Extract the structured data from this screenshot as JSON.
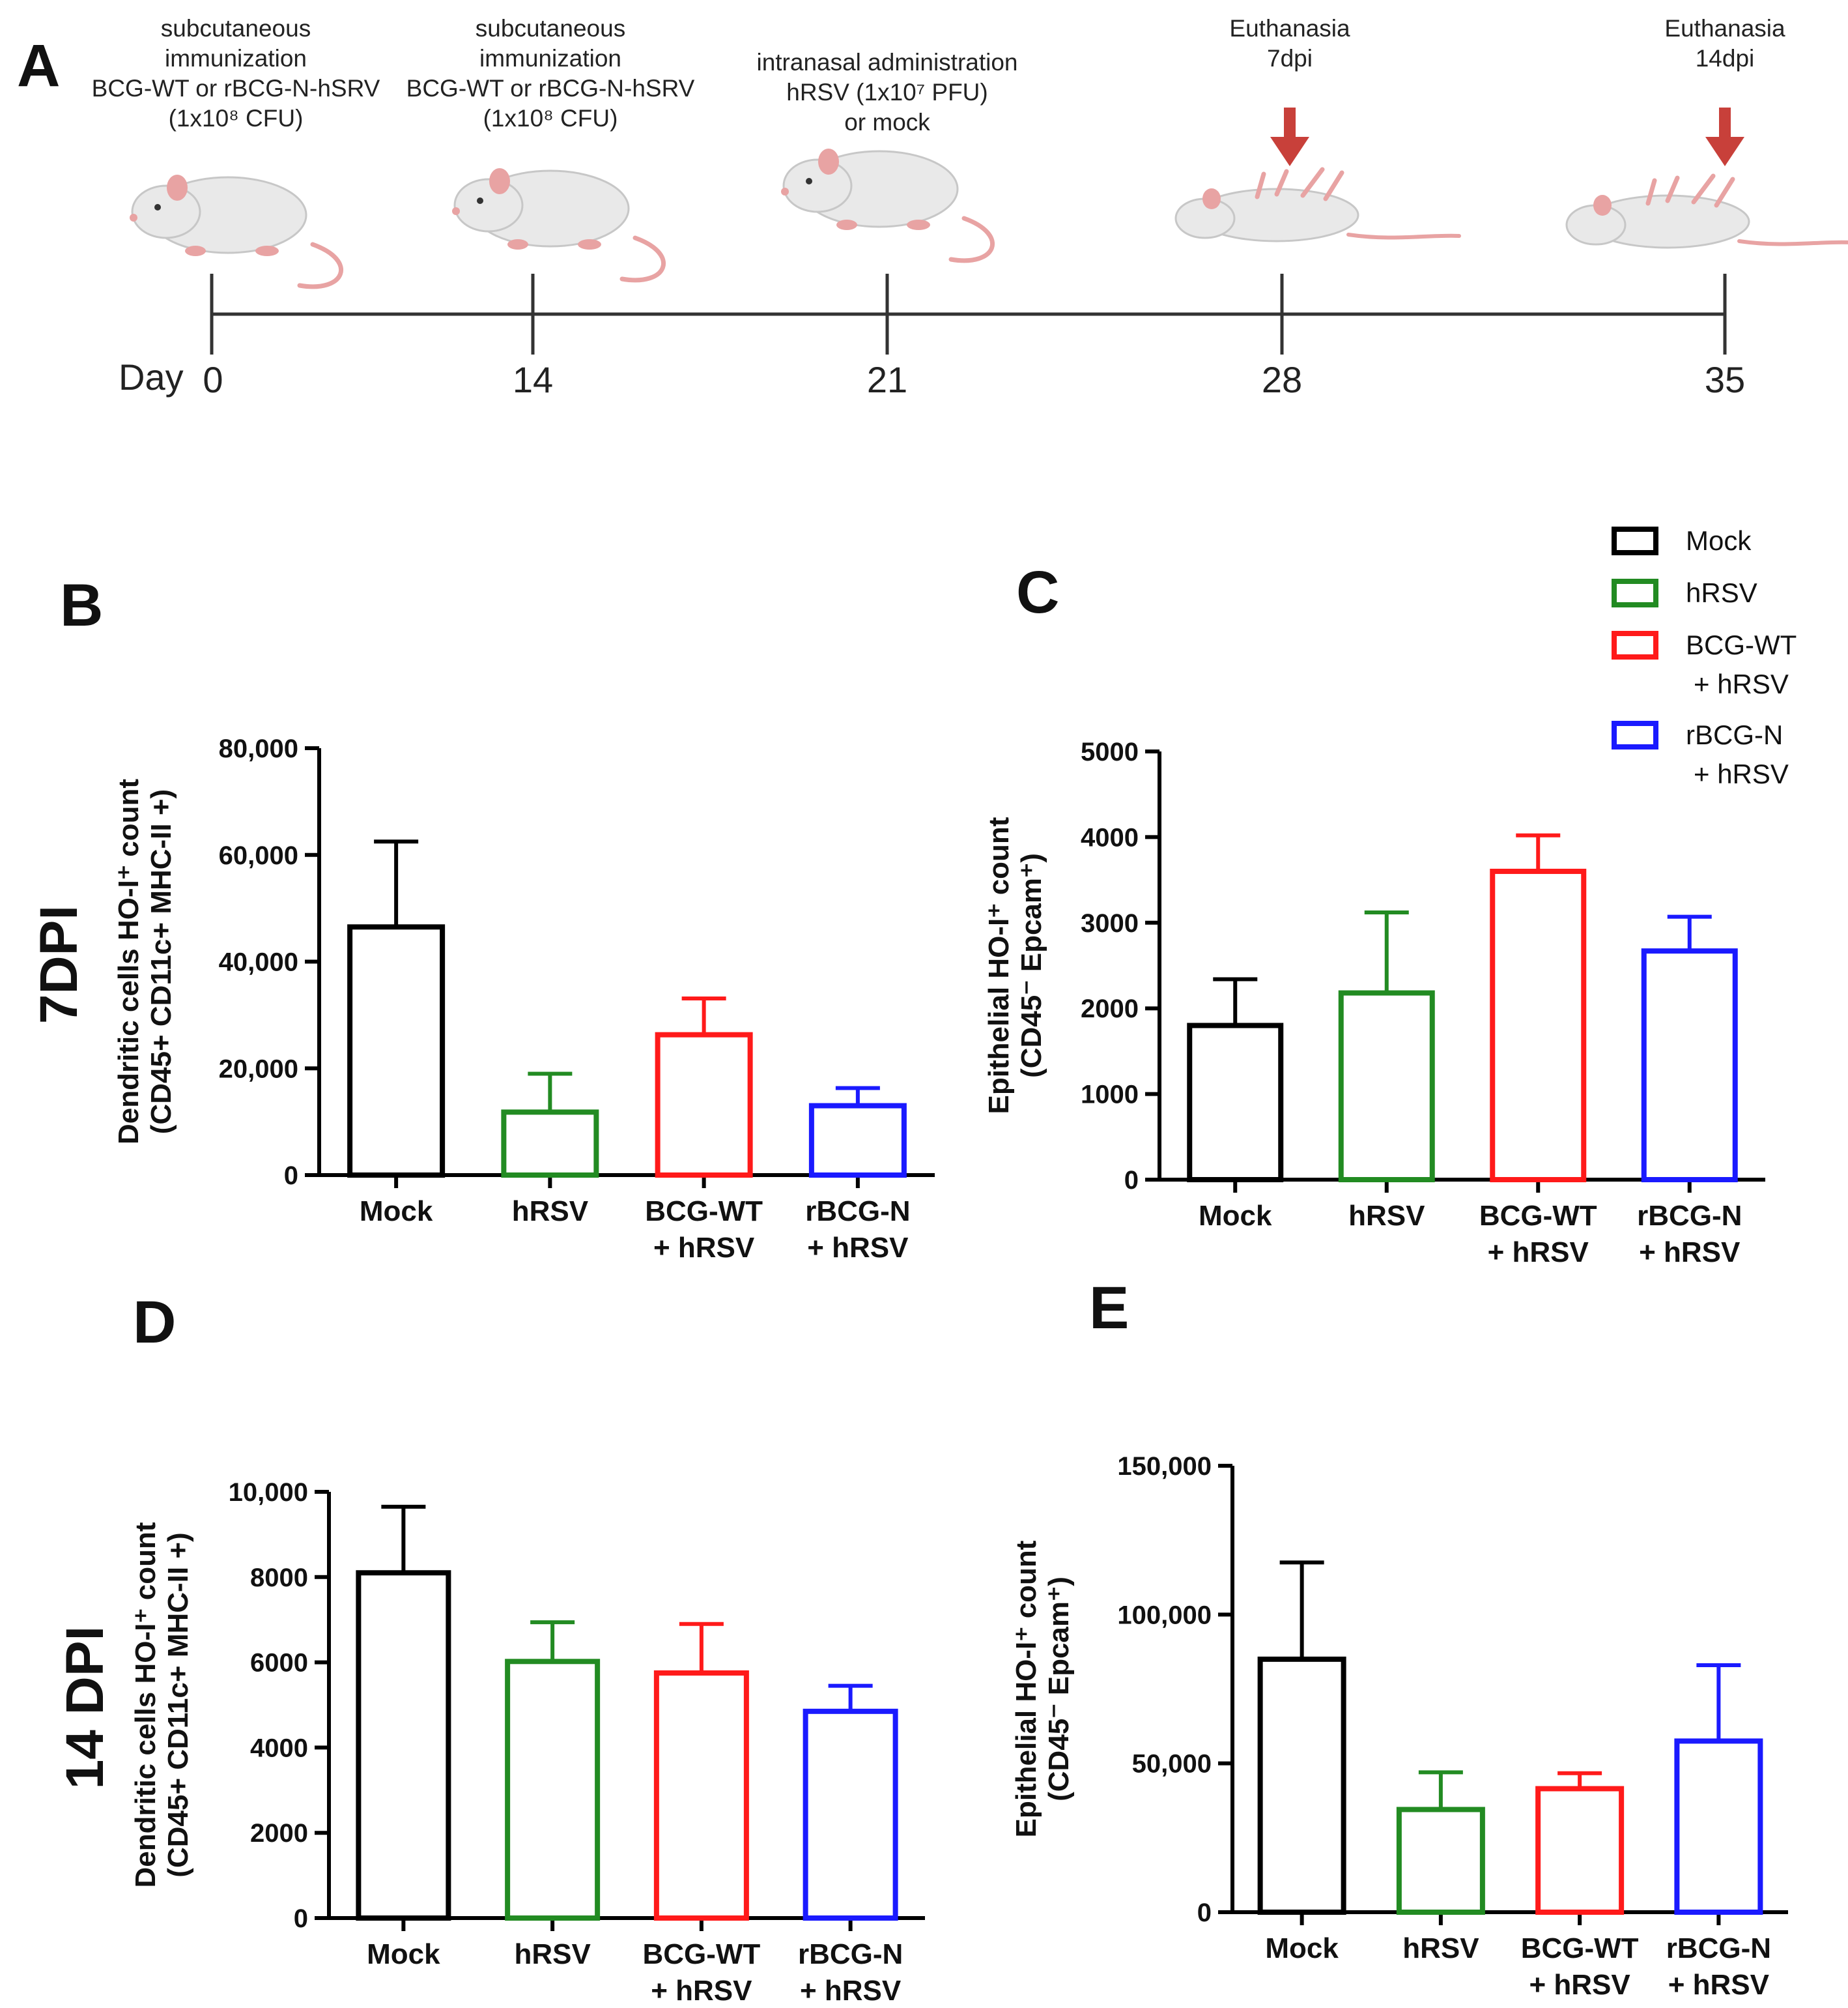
{
  "figure": {
    "panel_letters": [
      "A",
      "B",
      "C",
      "D",
      "E"
    ],
    "row_labels": [
      "7DPI",
      "14 DPI"
    ],
    "timeline": {
      "day_label": "Day",
      "days": [
        "0",
        "14",
        "21",
        "28",
        "35"
      ],
      "events": [
        {
          "lines": [
            "subcutaneous",
            "immunization",
            "BCG-WT or rBCG-N-hSRV",
            "(1x10⁸ CFU)"
          ]
        },
        {
          "lines": [
            "subcutaneous",
            "immunization",
            "BCG-WT or rBCG-N-hSRV",
            "(1x10⁸ CFU)"
          ]
        },
        {
          "lines": [
            "intranasal administration",
            "hRSV  (1x10⁷ PFU)",
            "or mock"
          ]
        },
        {
          "lines": [
            "Euthanasia",
            "7dpi"
          ],
          "arrow": true
        },
        {
          "lines": [
            "Euthanasia",
            "14dpi"
          ],
          "arrow": true
        }
      ],
      "colors": {
        "arrow": "#c8403a",
        "line": "#333333",
        "mouse_body": "#e9e9e9",
        "mouse_pink": "#e8a3a3"
      }
    },
    "legend": [
      {
        "lines": [
          "Mock"
        ],
        "color": "#000000"
      },
      {
        "lines": [
          "hRSV"
        ],
        "color": "#228b22"
      },
      {
        "lines": [
          "BCG-WT",
          "+ hRSV"
        ],
        "color": "#ff1a1a"
      },
      {
        "lines": [
          "rBCG-N",
          "+ hRSV"
        ],
        "color": "#1a1aff"
      }
    ]
  },
  "chart_data": [
    {
      "panel": "B",
      "type": "bar",
      "categories": [
        [
          "Mock"
        ],
        [
          "hRSV"
        ],
        [
          "BCG-WT",
          "+ hRSV"
        ],
        [
          "rBCG-N",
          "+ hRSV"
        ]
      ],
      "values": [
        46500,
        11800,
        26300,
        13000
      ],
      "errors": [
        16000,
        7200,
        6800,
        3300
      ],
      "colors": [
        "#000000",
        "#228b22",
        "#ff1a1a",
        "#1a1aff"
      ],
      "ylabel": [
        "Dendritic cells HO-I⁺ count",
        "(CD45+ CD11c+ MHC-II +)"
      ],
      "ylim": [
        0,
        80000
      ],
      "yticks": [
        "0",
        "20,000",
        "40,000",
        "60,000",
        "80,000"
      ]
    },
    {
      "panel": "C",
      "type": "bar",
      "categories": [
        [
          "Mock"
        ],
        [
          "hRSV"
        ],
        [
          "BCG-WT",
          "+ hRSV"
        ],
        [
          "rBCG-N",
          "+ hRSV"
        ]
      ],
      "values": [
        1800,
        2180,
        3600,
        2670
      ],
      "errors": [
        540,
        940,
        420,
        400
      ],
      "colors": [
        "#000000",
        "#228b22",
        "#ff1a1a",
        "#1a1aff"
      ],
      "ylabel": [
        "Epithelial HO-I⁺ count",
        "(CD45⁻ Epcam⁺)"
      ],
      "ylim": [
        0,
        5000
      ],
      "yticks": [
        "0",
        "1000",
        "2000",
        "3000",
        "4000",
        "5000"
      ]
    },
    {
      "panel": "D",
      "type": "bar",
      "categories": [
        [
          "Mock"
        ],
        [
          "hRSV"
        ],
        [
          "BCG-WT",
          "+ hRSV"
        ],
        [
          "rBCG-N",
          "+ hRSV"
        ]
      ],
      "values": [
        8100,
        6020,
        5750,
        4850
      ],
      "errors": [
        1550,
        920,
        1150,
        600
      ],
      "colors": [
        "#000000",
        "#228b22",
        "#ff1a1a",
        "#1a1aff"
      ],
      "ylabel": [
        "Dendritic cells HO-I⁺ count",
        "(CD45+ CD11c+ MHC-II +)"
      ],
      "ylim": [
        0,
        10000
      ],
      "yticks": [
        "0",
        "2000",
        "4000",
        "6000",
        "8000",
        "10,000"
      ]
    },
    {
      "panel": "E",
      "type": "bar",
      "categories": [
        [
          "Mock"
        ],
        [
          "hRSV"
        ],
        [
          "BCG-WT",
          "+ hRSV"
        ],
        [
          "rBCG-N",
          "+ hRSV"
        ]
      ],
      "values": [
        85000,
        34500,
        41500,
        57500
      ],
      "errors": [
        32500,
        12500,
        5200,
        25500
      ],
      "colors": [
        "#000000",
        "#228b22",
        "#ff1a1a",
        "#1a1aff"
      ],
      "ylabel": [
        "Epithelial HO-I⁺ count",
        "(CD45⁻ Epcam⁺)"
      ],
      "ylim": [
        0,
        150000
      ],
      "yticks": [
        "0",
        "50,000",
        "100,000",
        "150,000"
      ]
    }
  ]
}
